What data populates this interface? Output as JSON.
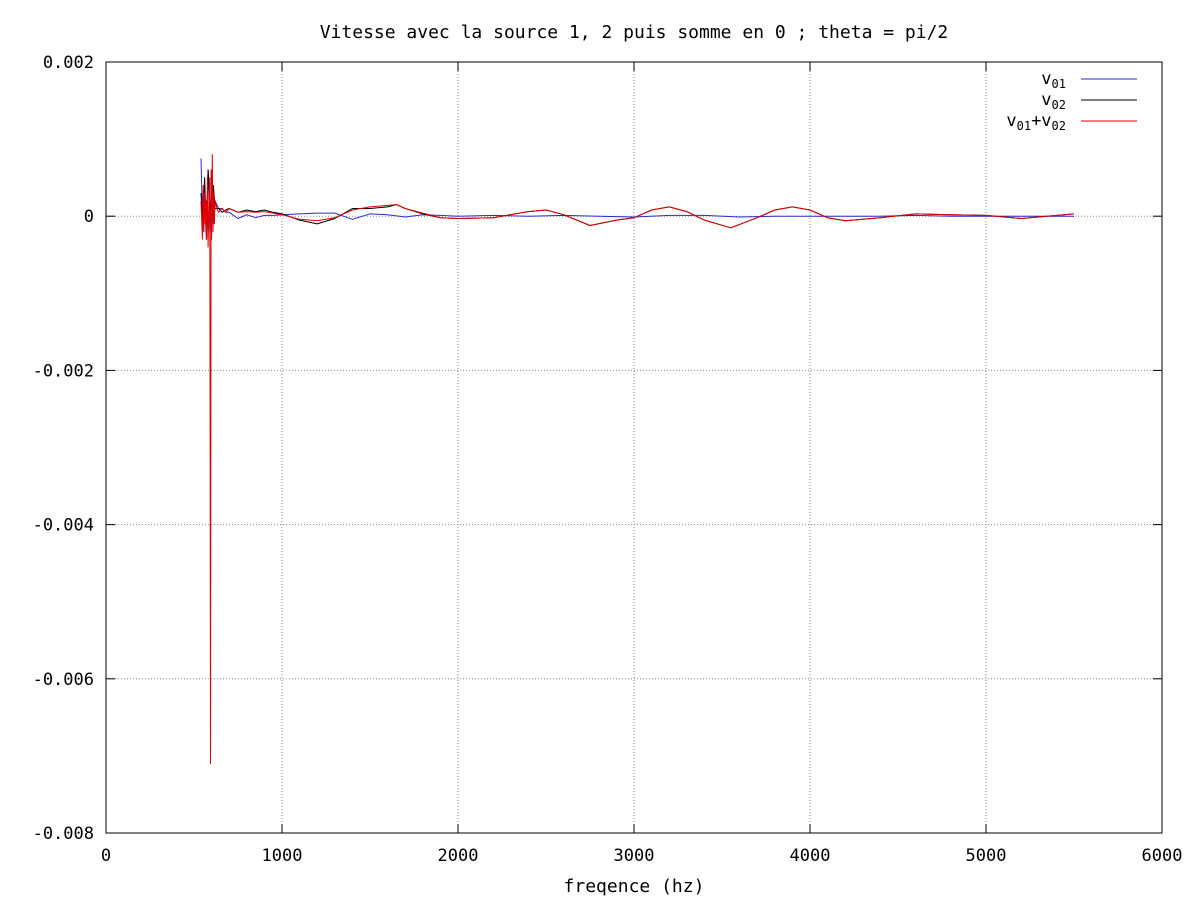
{
  "chart_data": {
    "type": "line",
    "title": "Vitesse avec la source 1, 2 puis somme en 0 ; theta = pi/2",
    "xlabel": "freqence (hz)",
    "ylabel": "",
    "xlim": [
      0,
      6000
    ],
    "ylim": [
      -0.008,
      0.002
    ],
    "x_ticks": [
      0,
      1000,
      2000,
      3000,
      4000,
      5000,
      6000
    ],
    "x_tick_labels": [
      "0",
      "1000",
      "2000",
      "3000",
      "4000",
      "5000",
      "6000"
    ],
    "y_ticks": [
      0.002,
      0,
      -0.002,
      -0.004,
      -0.006,
      -0.008
    ],
    "y_tick_labels": [
      "0.002",
      "0",
      "-0.002",
      "-0.004",
      "-0.006",
      "-0.008"
    ],
    "grid": true,
    "legend_position": "top-right",
    "series": [
      {
        "name": "v01",
        "legend": {
          "base": "v",
          "sub": "01"
        },
        "color": "#2b2bd4",
        "x": [
          540,
          550,
          560,
          570,
          580,
          590,
          600,
          610,
          620,
          640,
          660,
          680,
          700,
          750,
          800,
          850,
          900,
          950,
          1000,
          1100,
          1200,
          1300,
          1400,
          1500,
          1600,
          1700,
          1800,
          1900,
          2000,
          2200,
          2400,
          2600,
          2800,
          3000,
          3200,
          3400,
          3600,
          3800,
          4000,
          4200,
          4400,
          4600,
          4800,
          5000,
          5200,
          5500
        ],
        "y": [
          0.00075,
          -0.0002,
          0.0004,
          -0.0003,
          0.0006,
          -0.0002,
          0.0003,
          -0.0001,
          0.0002,
          0.0001,
          0.0001,
          5e-05,
          5e-05,
          -3e-05,
          2e-05,
          -2e-05,
          1e-05,
          1e-05,
          2e-05,
          3e-05,
          4e-05,
          4e-05,
          -4e-05,
          3e-05,
          2e-05,
          -1e-05,
          2e-05,
          1e-05,
          0.0,
          1e-05,
          0.0,
          1e-05,
          0.0,
          -1e-05,
          1e-05,
          1e-05,
          -1e-05,
          0.0,
          0.0,
          0.0,
          0.0,
          1e-05,
          0.0,
          0.0,
          0.0,
          0.0
        ]
      },
      {
        "name": "v02",
        "legend": {
          "base": "v",
          "sub": "02"
        },
        "color": "#000000",
        "x": [
          540,
          550,
          560,
          570,
          580,
          590,
          600,
          610,
          620,
          640,
          660,
          680,
          700,
          750,
          800,
          850,
          900,
          950,
          1000,
          1100,
          1200,
          1300,
          1400,
          1500,
          1600,
          1650,
          1700,
          1800,
          1900,
          2000,
          2200,
          2400,
          2500,
          2600,
          2750,
          2900,
          3000,
          3100,
          3200,
          3300,
          3400,
          3550,
          3700,
          3800,
          3900,
          4000,
          4100,
          4200,
          4400,
          4600,
          4800,
          5000,
          5200,
          5500
        ],
        "y": [
          0.0003,
          -0.0001,
          0.0005,
          -0.0002,
          0.0006,
          0.0002,
          -0.0001,
          0.0004,
          0.0001,
          0.0001,
          5e-05,
          8e-05,
          0.0001,
          5e-05,
          8e-05,
          6e-05,
          8e-05,
          5e-05,
          3e-05,
          -5e-05,
          -0.0001,
          -3e-05,
          0.0001,
          0.0001,
          0.00012,
          0.00015,
          0.0001,
          3e-05,
          -2e-05,
          -3e-05,
          -2e-05,
          6e-05,
          8e-05,
          2e-05,
          -0.00012,
          -5e-05,
          -2e-05,
          8e-05,
          0.00012,
          6e-05,
          -5e-05,
          -0.00015,
          -2e-05,
          8e-05,
          0.00012,
          8e-05,
          -2e-05,
          -6e-05,
          -2e-05,
          3e-05,
          2e-05,
          1e-05,
          -3e-05,
          3e-05
        ]
      },
      {
        "name": "v01+v02",
        "legend": {
          "base": "v",
          "sub": "01",
          "mid": "+v",
          "sub2": "02"
        },
        "color": "#e00000",
        "x": [
          540,
          548,
          552,
          556,
          560,
          564,
          568,
          572,
          576,
          580,
          585,
          590,
          594,
          597,
          600,
          604,
          608,
          612,
          616,
          620,
          630,
          640,
          660,
          680,
          700,
          720,
          750,
          800,
          850,
          900,
          950,
          1000,
          1100,
          1200,
          1300,
          1400,
          1500,
          1600,
          1650,
          1700,
          1800,
          1900,
          2000,
          2200,
          2400,
          2500,
          2600,
          2750,
          2900,
          3000,
          3100,
          3200,
          3300,
          3400,
          3550,
          3700,
          3800,
          3900,
          4000,
          4100,
          4200,
          4400,
          4600,
          4800,
          5000,
          5200,
          5500
        ],
        "y": [
          0.0002,
          -0.0003,
          0.0004,
          -0.0002,
          0.0003,
          -0.0001,
          0.0002,
          -0.0003,
          0.0005,
          -0.0004,
          0.0002,
          0.0005,
          -0.0071,
          0.0006,
          -0.0003,
          0.0008,
          -0.0002,
          0.0003,
          -0.0001,
          0.0002,
          0.0001,
          5e-05,
          0.0001,
          5e-05,
          0.0001,
          8e-05,
          5e-05,
          6e-05,
          5e-05,
          6e-05,
          4e-05,
          2e-05,
          -4e-05,
          -6e-05,
          -2e-05,
          8e-05,
          0.00012,
          0.00014,
          0.00015,
          0.0001,
          4e-05,
          -2e-05,
          -3e-05,
          -2e-05,
          6e-05,
          8e-05,
          2e-05,
          -0.00012,
          -5e-05,
          -2e-05,
          8e-05,
          0.00012,
          6e-05,
          -5e-05,
          -0.00015,
          -2e-05,
          8e-05,
          0.00012,
          8e-05,
          -2e-05,
          -6e-05,
          -2e-05,
          3e-05,
          2e-05,
          1e-05,
          -3e-05,
          3e-05
        ]
      }
    ]
  }
}
